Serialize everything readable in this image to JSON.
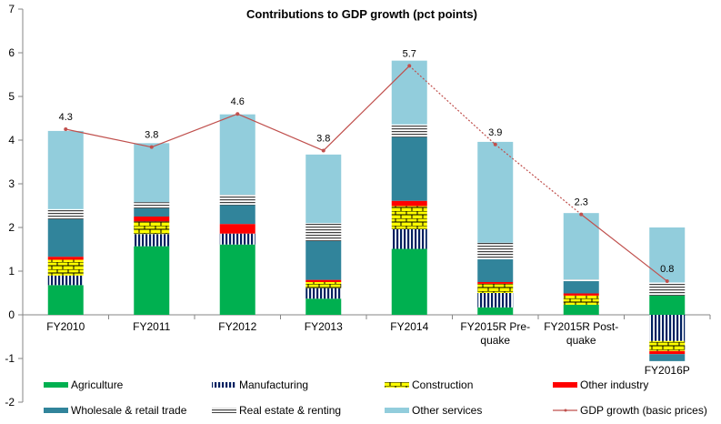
{
  "chart_data": {
    "type": "bar",
    "stacked": true,
    "title": "Contributions to GDP growth (pct points)",
    "xlabel": "",
    "ylabel": "",
    "ylim": [
      -2,
      7
    ],
    "yticks": [
      -2,
      -1,
      0,
      1,
      2,
      3,
      4,
      5,
      6,
      7
    ],
    "grid": false,
    "legend_position": "bottom",
    "categories": [
      [
        "FY2010"
      ],
      [
        "FY2011"
      ],
      [
        "FY2012"
      ],
      [
        "FY2013"
      ],
      [
        "FY2014"
      ],
      [
        "FY2015R Pre-",
        "quake"
      ],
      [
        "FY2015R Post-",
        "quake"
      ],
      [
        "FY2016P"
      ]
    ],
    "series": [
      {
        "name": "Agriculture",
        "pattern": "solid",
        "color": "#00B050",
        "values": [
          0.68,
          1.57,
          1.61,
          0.37,
          1.51,
          0.17,
          0.23,
          0.44
        ]
      },
      {
        "name": "Manufacturing",
        "pattern": "vertical-stripes",
        "color": "#002060",
        "values": [
          0.22,
          0.28,
          0.25,
          0.24,
          0.45,
          0.33,
          0.0,
          -0.6
        ]
      },
      {
        "name": "Construction",
        "pattern": "bricks",
        "color": "#FFFF00",
        "values": [
          0.36,
          0.29,
          0.0,
          0.14,
          0.53,
          0.21,
          0.21,
          -0.23
        ]
      },
      {
        "name": "Other industry",
        "pattern": "solid",
        "color": "#FF0000",
        "values": [
          0.07,
          0.11,
          0.22,
          0.05,
          0.12,
          0.04,
          0.05,
          -0.07
        ]
      },
      {
        "name": "Wholesale & retail trade",
        "pattern": "solid",
        "color": "#31849B",
        "values": [
          0.86,
          0.19,
          0.43,
          0.89,
          1.46,
          0.52,
          0.28,
          -0.16
        ]
      },
      {
        "name": "Real estate & renting",
        "pattern": "horizontal-stripes",
        "color": "#404040",
        "values": [
          0.23,
          0.14,
          0.24,
          0.41,
          0.29,
          0.38,
          0.04,
          0.3
        ]
      },
      {
        "name": "Other services",
        "pattern": "solid",
        "color": "#92CDDC",
        "values": [
          1.79,
          1.35,
          1.84,
          1.57,
          1.46,
          2.31,
          1.52,
          1.26
        ]
      }
    ],
    "line": {
      "name": "GDP growth (basic prices)",
      "color": "#C0504D",
      "values": [
        4.25,
        3.84,
        4.6,
        3.76,
        5.7,
        3.9,
        2.3,
        0.77
      ],
      "labels": [
        "4.3",
        "3.8",
        "4.6",
        "3.8",
        "5.7",
        "3.9",
        "2.3",
        "0.8"
      ],
      "dashed_segments": [
        4,
        5
      ]
    },
    "legend": [
      {
        "name": "Agriculture",
        "series": 0
      },
      {
        "name": "Manufacturing",
        "series": 1
      },
      {
        "name": "Construction",
        "series": 2
      },
      {
        "name": "Other industry",
        "series": 3
      },
      {
        "name": "Wholesale & retail trade",
        "series": 4
      },
      {
        "name": "Real estate & renting",
        "series": 5
      },
      {
        "name": "Other services",
        "series": 6
      },
      {
        "name": "GDP growth (basic prices)",
        "series": "line"
      }
    ]
  }
}
